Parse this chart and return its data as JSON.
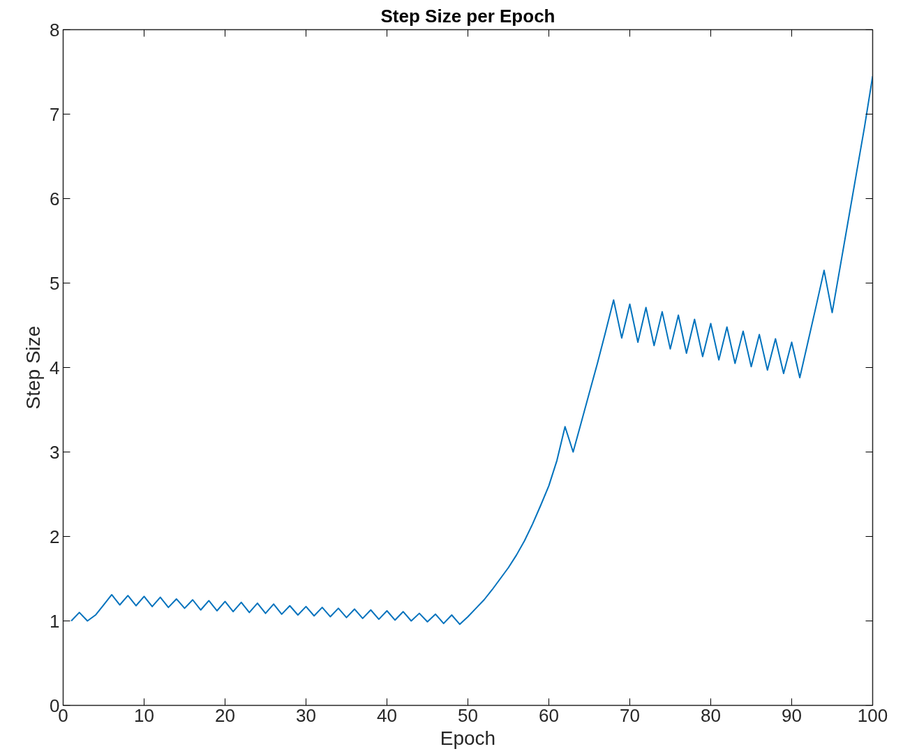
{
  "chart_data": {
    "type": "line",
    "title": "Step Size per Epoch",
    "xlabel": "Epoch",
    "ylabel": "Step Size",
    "x": [
      1,
      2,
      3,
      4,
      5,
      6,
      7,
      8,
      9,
      10,
      11,
      12,
      13,
      14,
      15,
      16,
      17,
      18,
      19,
      20,
      21,
      22,
      23,
      24,
      25,
      26,
      27,
      28,
      29,
      30,
      31,
      32,
      33,
      34,
      35,
      36,
      37,
      38,
      39,
      40,
      41,
      42,
      43,
      44,
      45,
      46,
      47,
      48,
      49,
      50,
      51,
      52,
      53,
      54,
      55,
      56,
      57,
      58,
      59,
      60,
      61,
      62,
      63,
      64,
      65,
      66,
      67,
      68,
      69,
      70,
      71,
      72,
      73,
      74,
      75,
      76,
      77,
      78,
      79,
      80,
      81,
      82,
      83,
      84,
      85,
      86,
      87,
      88,
      89,
      90,
      91,
      92,
      93,
      94,
      95,
      96,
      97,
      98,
      99,
      100
    ],
    "series": [
      {
        "color": "#0072bd",
        "values": [
          1.0,
          1.1,
          1.0,
          1.07,
          1.19,
          1.31,
          1.19,
          1.3,
          1.18,
          1.29,
          1.17,
          1.28,
          1.16,
          1.26,
          1.15,
          1.25,
          1.13,
          1.24,
          1.12,
          1.23,
          1.11,
          1.22,
          1.1,
          1.21,
          1.09,
          1.2,
          1.08,
          1.18,
          1.07,
          1.17,
          1.06,
          1.16,
          1.05,
          1.15,
          1.04,
          1.14,
          1.03,
          1.13,
          1.02,
          1.12,
          1.01,
          1.11,
          1.0,
          1.09,
          0.99,
          1.08,
          0.97,
          1.07,
          0.96,
          1.05,
          1.15,
          1.25,
          1.37,
          1.5,
          1.63,
          1.78,
          1.95,
          2.15,
          2.37,
          2.6,
          2.9,
          3.3,
          3.0,
          3.35,
          3.7,
          4.05,
          4.42,
          4.8,
          4.35,
          4.75,
          4.3,
          4.71,
          4.26,
          4.66,
          4.22,
          4.62,
          4.17,
          4.57,
          4.13,
          4.52,
          4.09,
          4.48,
          4.05,
          4.43,
          4.01,
          4.39,
          3.97,
          4.34,
          3.93,
          4.3,
          3.88,
          4.3,
          4.72,
          5.15,
          4.65,
          5.2,
          5.75,
          6.3,
          6.85,
          7.45
        ]
      }
    ],
    "xlim": [
      0,
      100
    ],
    "ylim": [
      0,
      8
    ],
    "xticks": [
      0,
      10,
      20,
      30,
      40,
      50,
      60,
      70,
      80,
      90,
      100
    ],
    "yticks": [
      0,
      1,
      2,
      3,
      4,
      5,
      6,
      7,
      8
    ],
    "grid": false,
    "marker": "none",
    "line_style": "solid"
  }
}
